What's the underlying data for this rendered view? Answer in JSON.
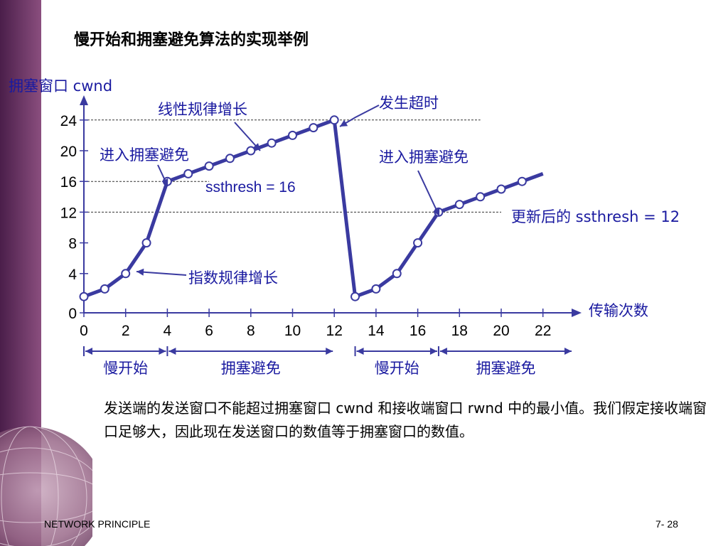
{
  "slide": {
    "title": "慢开始和拥塞避免算法的实现举例",
    "paragraph": "发送端的发送窗口不能超过拥塞窗口 cwnd 和接收端窗口 rwnd 中的最小值。我们假定接收端窗口足够大，因此现在发送窗口的数值等于拥塞窗口的数值。",
    "footer_left": "NETWORK PRINCIPLE",
    "footer_right": "7- 28"
  },
  "chart_data": {
    "type": "line",
    "ylabel": "拥塞窗口 cwnd",
    "xlabel": "传输次数",
    "xlim": [
      0,
      22
    ],
    "ylim": [
      0,
      24
    ],
    "xticks": [
      0,
      2,
      4,
      6,
      8,
      10,
      12,
      14,
      16,
      18,
      20,
      22
    ],
    "yticks": [
      0,
      4,
      8,
      12,
      16,
      20,
      24
    ],
    "x": [
      0,
      1,
      2,
      3,
      4,
      5,
      6,
      7,
      8,
      9,
      10,
      11,
      12,
      13,
      14,
      15,
      16,
      17,
      18,
      19,
      20,
      21,
      22
    ],
    "series": [
      {
        "values": [
          1,
          2,
          4,
          8,
          16,
          17,
          18,
          19,
          20,
          21,
          22,
          23,
          24,
          1,
          2,
          4,
          8,
          12,
          13,
          14,
          15,
          16,
          17
        ],
        "markers": [
          0,
          1,
          2,
          3,
          4,
          5,
          6,
          7,
          8,
          9,
          10,
          11,
          12,
          13,
          14,
          15,
          16,
          17,
          18,
          19,
          20,
          21
        ]
      }
    ],
    "reference_lines": [
      {
        "y": 24,
        "x_to": 19
      },
      {
        "y": 16,
        "x_to": 6
      },
      {
        "y": 12,
        "x_to": 20
      }
    ],
    "annotations": [
      {
        "text": "线性规律增长"
      },
      {
        "text": "发生超时"
      },
      {
        "text": "进入拥塞避免"
      },
      {
        "text": "进入拥塞避免"
      },
      {
        "text": "ssthresh = 16"
      },
      {
        "text": "更新后的 ssthresh = 12"
      },
      {
        "text": "指数规律增长"
      }
    ],
    "phases": [
      {
        "label": "慢开始",
        "from": 0,
        "to": 4
      },
      {
        "label": "拥塞避免",
        "from": 4,
        "to": 12
      },
      {
        "label": "慢开始",
        "from": 13,
        "to": 17
      },
      {
        "label": "拥塞避免",
        "from": 17,
        "to": 23
      }
    ],
    "colors": {
      "line": "#3a3aa0",
      "text": "#1a1aa0",
      "axis": "#3a3aa0"
    }
  }
}
